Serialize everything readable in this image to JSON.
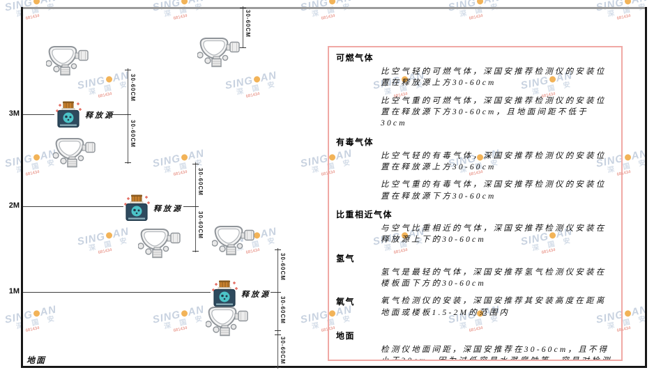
{
  "diagram": {
    "wall_labels": [
      "3M",
      "2M",
      "1M"
    ],
    "ground_label": "地面",
    "release_source_label": "释放源",
    "dimension_label": "30-60CM"
  },
  "watermark": {
    "brand_left": "SING",
    "brand_right": "AN",
    "cn": "深 国 安",
    "red_text": "681434"
  },
  "panel": {
    "sections": [
      {
        "heading": "可燃气体",
        "inline": false,
        "paragraphs": [
          "比空气轻的可燃气体，深国安推荐检测仪的安装位置在释放源上方30-60cm",
          "比空气重的可燃气体，深国安推荐检测仪的安装位置在释放源下方30-60cm，且地面间距不低于30cm"
        ]
      },
      {
        "heading": "有毒气体",
        "inline": false,
        "paragraphs": [
          "比空气轻的有毒气体，深国安推荐检测仪的安装位置在释放源上方30-60cm",
          "比空气重的有毒气体，深国安推荐检测仪的安装位置在释放源下方30-60cm"
        ]
      },
      {
        "heading": "比重相近气体",
        "inline": false,
        "paragraphs": [
          "与空气比重相近的气体，深国安推荐检测仪安装在释放源上下的30-60cm"
        ]
      },
      {
        "heading": "氢气",
        "inline": false,
        "paragraphs": [
          "氢气是最轻的气体，深国安推荐氢气检测仪安装在楼板面下方的30-60cm"
        ]
      },
      {
        "heading": "氧气",
        "inline": true,
        "paragraphs": [
          "氧气检测仪的安装，深国安推荐其安装高度在距离地面或楼板1.5-2M的范围内"
        ]
      },
      {
        "heading": "地面",
        "inline": false,
        "paragraphs": [
          "检测仪地面间距，深国安推荐在30-60cm，且不得小于30cm，因为过低容易水溅腐蚀等，容易对检测仪造成伤害"
        ]
      }
    ]
  },
  "colors": {
    "panel_border": "#f0a8a4",
    "watermark_blue": "#bfcbdb",
    "watermark_orange": "#f0a63c",
    "watermark_red": "#e06a5a",
    "source_body": "#2e4a5e",
    "source_body_dark": "#22394a",
    "source_cap": "#c8802e",
    "source_cap_dark": "#8a5a1e",
    "source_core": "#4cc4c8",
    "detector_stroke": "#8f9499",
    "detector_fill": "#f4f4f4"
  }
}
